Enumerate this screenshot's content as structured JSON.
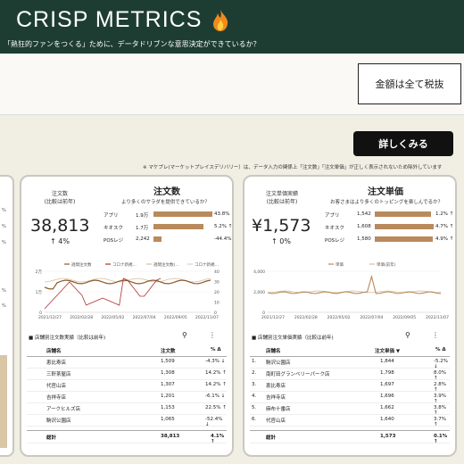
{
  "header": {
    "title": "CRISP METRICS",
    "subtitle": "「熱狂的ファンをつくる」ために、データドリブンな意思決定ができているか？"
  },
  "tax_note": "金額は全て税抜",
  "detail_button": "詳しくみる",
  "notice": "※ マケプレ(マーケットプレイスデリバリー）は、データ入力の関係上「注文数」「注文単価」が正しく表示されないため除外しています",
  "left_card_ticks": [
    "%",
    "%",
    "%",
    "%",
    "%"
  ],
  "cards": [
    {
      "kpi_title": "注文数",
      "kpi_title2": "(比較は前年)",
      "kpi_value": "38,813",
      "kpi_delta": "↑ 4%",
      "title": "注文数",
      "question": "より多くのサラダを提供できているか？",
      "bars": [
        {
          "label": "アプリ",
          "value": "1.9万",
          "pct": "43.8% ↑",
          "fill": 1.0
        },
        {
          "label": "キオスク",
          "value": "1.7万",
          "pct": "5.2% ↑",
          "fill": 0.85
        },
        {
          "label": "POSレジ",
          "value": "2,242",
          "pct": "-44.4% ↓",
          "fill": 0.14
        }
      ],
      "legend": [
        "週間注文数",
        "コロナ新規...",
        "週間注文数(...",
        "コロナ新規..."
      ],
      "y_left": [
        "2万",
        "1万",
        "0"
      ],
      "y_right": [
        "40",
        "30",
        "20",
        "10",
        "0"
      ],
      "x_ticks": [
        "2021/12/27",
        "2022/02/28",
        "2022/05/02",
        "2022/07/04",
        "2022/09/05",
        "2022/11/07"
      ],
      "table_title": "■ 店舗別注文数実績（比較は前年)",
      "table_headers": [
        "店舗名",
        "注文数",
        "% Δ"
      ],
      "rows": [
        [
          "恵比寿店",
          "1,509",
          "-4.3% ↓"
        ],
        [
          "三軒茶屋店",
          "1,308",
          "14.2% ↑"
        ],
        [
          "代官山店",
          "1,307",
          "14.2% ↑"
        ],
        [
          "吉祥寺店",
          "1,201",
          "-6.1% ↓"
        ],
        [
          "アークヒルズ店",
          "1,153",
          "22.5% ↑"
        ],
        [
          "駒沢公園店",
          "1,065",
          "-52.4% ↓"
        ]
      ],
      "total": [
        "総計",
        "38,813",
        "4.1% ↑"
      ]
    },
    {
      "kpi_title": "注文単価実績",
      "kpi_title2": "(比較は前年)",
      "kpi_value": "¥1,573",
      "kpi_delta": "↑ 0%",
      "title": "注文単価",
      "question": "お客さまはより多くのトッピングを楽しんでるか？",
      "bars": [
        {
          "label": "アプリ",
          "value": "1,542",
          "pct": "1.2% ↑",
          "fill": 0.96
        },
        {
          "label": "キオスク",
          "value": "1,608",
          "pct": "4.7% ↑",
          "fill": 1.0
        },
        {
          "label": "POSレジ",
          "value": "1,580",
          "pct": "4.9% ↑",
          "fill": 0.98
        }
      ],
      "legend": [
        "単価",
        "単価(前年)"
      ],
      "y_left": [
        "4,000",
        "2,000",
        "0"
      ],
      "x_ticks": [
        "2021/12/27",
        "2022/02/28",
        "2022/05/02",
        "2022/07/04",
        "2022/09/05",
        "2022/11/07"
      ],
      "table_title": "■ 店舗別注文単価実績（比較は前年)",
      "table_headers": [
        "店舗名",
        "注文単価 ▼",
        "% Δ"
      ],
      "rows": [
        [
          "1.",
          "駒沢公園店",
          "1,844",
          "-5.2% ↓"
        ],
        [
          "2.",
          "南町田グランベリーパーク店",
          "1,798",
          "8.0% ↑"
        ],
        [
          "3.",
          "恵比寿店",
          "1,697",
          "2.8% ↑"
        ],
        [
          "4.",
          "吉祥寺店",
          "1,696",
          "3.9% ↑"
        ],
        [
          "5.",
          "麻布十番店",
          "1,662",
          "3.8% ↑"
        ],
        [
          "6.",
          "代官山店",
          "1,640",
          "3.7% ↑"
        ]
      ],
      "total": [
        "総計",
        "1,573",
        "0.1% ↑"
      ]
    }
  ],
  "colors": {
    "header_bg": "#1e3d32",
    "bar": "#b98a5c",
    "line_main": "#8b5a2b",
    "line_red": "#b03030",
    "line_prev": "#d9bfa0"
  }
}
